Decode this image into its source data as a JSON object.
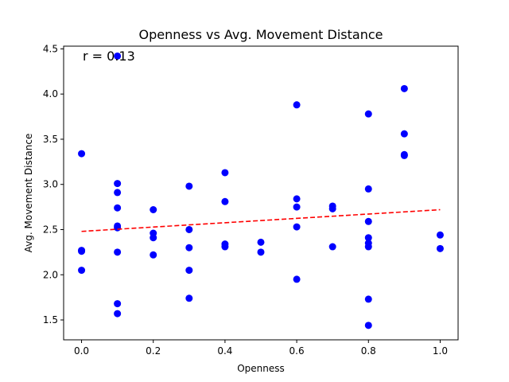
{
  "chart_data": {
    "type": "scatter",
    "title": "Openness vs Avg. Movement Distance",
    "xlabel": "Openness",
    "ylabel": "Avg. Movement Distance",
    "xlim": [
      -0.05,
      1.05
    ],
    "ylim": [
      1.28,
      4.53
    ],
    "xticks": [
      0.0,
      0.2,
      0.4,
      0.6,
      0.8,
      1.0
    ],
    "xtick_labels": [
      "0.0",
      "0.2",
      "0.4",
      "0.6",
      "0.8",
      "1.0"
    ],
    "yticks": [
      1.5,
      2.0,
      2.5,
      3.0,
      3.5,
      4.0,
      4.5
    ],
    "ytick_labels": [
      "1.5",
      "2.0",
      "2.5",
      "3.0",
      "3.5",
      "4.0",
      "4.5"
    ],
    "annotation": "r = 0.13",
    "point_color": "#0000ff",
    "trend_color": "#ff0000",
    "points": [
      {
        "x": 0.0,
        "y": 3.34
      },
      {
        "x": 0.0,
        "y": 2.27
      },
      {
        "x": 0.0,
        "y": 2.26
      },
      {
        "x": 0.0,
        "y": 2.05
      },
      {
        "x": 0.1,
        "y": 4.42
      },
      {
        "x": 0.1,
        "y": 3.01
      },
      {
        "x": 0.1,
        "y": 2.91
      },
      {
        "x": 0.1,
        "y": 2.74
      },
      {
        "x": 0.1,
        "y": 2.54
      },
      {
        "x": 0.1,
        "y": 2.52
      },
      {
        "x": 0.1,
        "y": 2.25
      },
      {
        "x": 0.1,
        "y": 1.68
      },
      {
        "x": 0.1,
        "y": 1.57
      },
      {
        "x": 0.2,
        "y": 2.72
      },
      {
        "x": 0.2,
        "y": 2.46
      },
      {
        "x": 0.2,
        "y": 2.41
      },
      {
        "x": 0.2,
        "y": 2.22
      },
      {
        "x": 0.3,
        "y": 2.98
      },
      {
        "x": 0.3,
        "y": 2.5
      },
      {
        "x": 0.3,
        "y": 2.3
      },
      {
        "x": 0.3,
        "y": 2.05
      },
      {
        "x": 0.3,
        "y": 1.74
      },
      {
        "x": 0.4,
        "y": 3.13
      },
      {
        "x": 0.4,
        "y": 2.81
      },
      {
        "x": 0.4,
        "y": 2.34
      },
      {
        "x": 0.4,
        "y": 2.31
      },
      {
        "x": 0.5,
        "y": 2.36
      },
      {
        "x": 0.5,
        "y": 2.25
      },
      {
        "x": 0.6,
        "y": 3.88
      },
      {
        "x": 0.6,
        "y": 2.84
      },
      {
        "x": 0.6,
        "y": 2.75
      },
      {
        "x": 0.6,
        "y": 2.53
      },
      {
        "x": 0.6,
        "y": 1.95
      },
      {
        "x": 0.7,
        "y": 2.76
      },
      {
        "x": 0.7,
        "y": 2.73
      },
      {
        "x": 0.7,
        "y": 2.31
      },
      {
        "x": 0.8,
        "y": 3.78
      },
      {
        "x": 0.8,
        "y": 2.95
      },
      {
        "x": 0.8,
        "y": 2.59
      },
      {
        "x": 0.8,
        "y": 2.41
      },
      {
        "x": 0.8,
        "y": 2.35
      },
      {
        "x": 0.8,
        "y": 2.31
      },
      {
        "x": 0.8,
        "y": 1.73
      },
      {
        "x": 0.8,
        "y": 1.44
      },
      {
        "x": 0.9,
        "y": 4.06
      },
      {
        "x": 0.9,
        "y": 3.56
      },
      {
        "x": 0.9,
        "y": 3.33
      },
      {
        "x": 0.9,
        "y": 3.32
      },
      {
        "x": 1.0,
        "y": 2.44
      },
      {
        "x": 1.0,
        "y": 2.29
      }
    ],
    "trend_line": {
      "x": [
        0.0,
        1.0
      ],
      "y": [
        2.48,
        2.72
      ],
      "style": "dashed"
    }
  }
}
